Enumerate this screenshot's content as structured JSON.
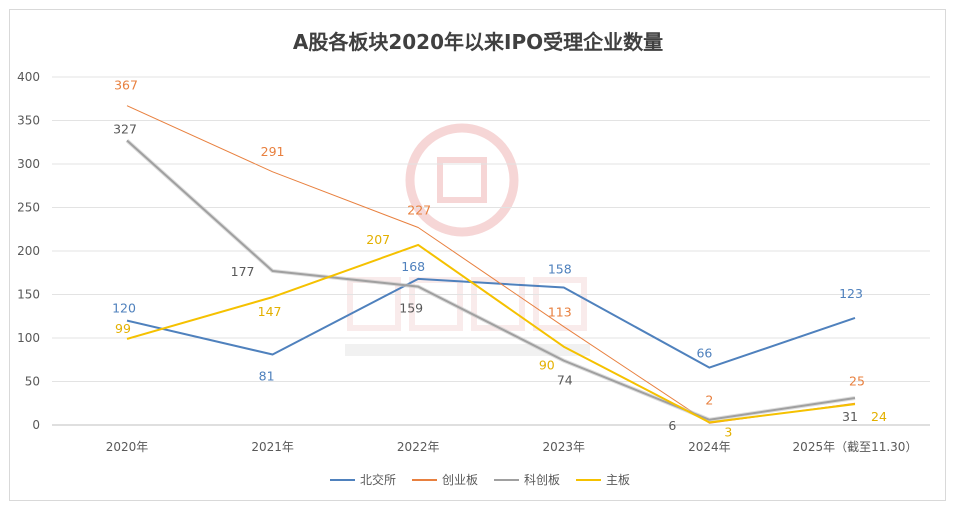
{
  "chart_data": {
    "type": "line",
    "title": "A股各板块2020年以来IPO受理企业数量",
    "categories": [
      "2020年",
      "2021年",
      "2022年",
      "2023年",
      "2024年",
      "2025年（截至11.30）"
    ],
    "ylim": [
      0,
      400
    ],
    "yticks": [
      0,
      50,
      100,
      150,
      200,
      250,
      300,
      350,
      400
    ],
    "grid": true,
    "legend_position": "bottom",
    "series": [
      {
        "name": "北交所",
        "color": "#4f81bd",
        "values": [
          120,
          81,
          168,
          158,
          66,
          123
        ]
      },
      {
        "name": "创业板",
        "color": "#e8803f",
        "values": [
          367,
          291,
          227,
          113,
          2,
          25
        ]
      },
      {
        "name": "科创板",
        "color": "#a0a0a0",
        "values": [
          327,
          177,
          159,
          74,
          6,
          31
        ]
      },
      {
        "name": "主板",
        "color": "#f5c100",
        "values": [
          99,
          147,
          207,
          90,
          3,
          24
        ]
      }
    ],
    "watermark": {
      "cn": "汉鼎咨询",
      "en": "HEADING CONSULTING"
    }
  }
}
